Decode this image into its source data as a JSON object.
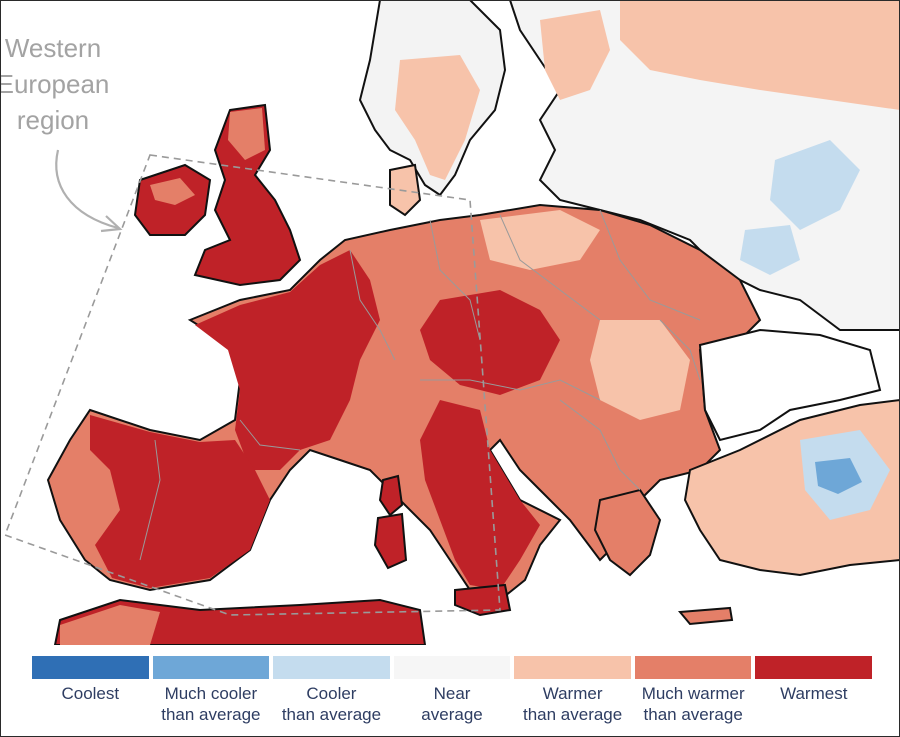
{
  "region_label": {
    "lines": [
      "Western",
      "European",
      "region"
    ]
  },
  "legend": {
    "items": [
      {
        "lines": [
          "Coolest"
        ],
        "color": "#2f6fb5"
      },
      {
        "lines": [
          "Much cooler",
          "than average"
        ],
        "color": "#6ea7d7"
      },
      {
        "lines": [
          "Cooler",
          "than average"
        ],
        "color": "#c4dcee"
      },
      {
        "lines": [
          "Near",
          "average"
        ],
        "color": "#f6f6f6"
      },
      {
        "lines": [
          "Warmer",
          "than average"
        ],
        "color": "#f7c3aa"
      },
      {
        "lines": [
          "Much warmer",
          "than average"
        ],
        "color": "#e47f68"
      },
      {
        "lines": [
          "Warmest"
        ],
        "color": "#bf2228"
      }
    ]
  },
  "colors": {
    "sea": "#ffffff",
    "coastline": "#111111",
    "border": "#9a9a9a",
    "region_outline": "#9a9a9a",
    "label_gray": "#a3a3a3",
    "legend_text": "#2e3d62"
  }
}
